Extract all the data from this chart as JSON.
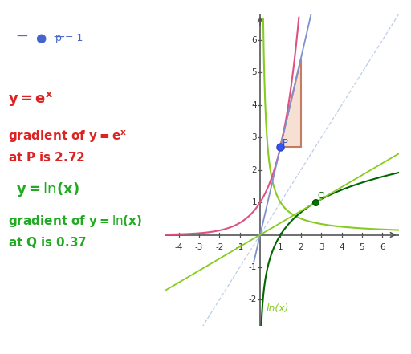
{
  "xlim": [
    -4.7,
    6.8
  ],
  "ylim": [
    -2.8,
    6.8
  ],
  "xticks": [
    -4,
    -3,
    -2,
    -1,
    1,
    2,
    3,
    4,
    5,
    6
  ],
  "yticks": [
    -2,
    -1,
    1,
    2,
    3,
    4,
    5,
    6
  ],
  "bg_color": "#ffffff",
  "axis_color": "#555555",
  "exp_color": "#e05080",
  "tangent_exp_color": "#8090cc",
  "ln_dark_color": "#006600",
  "ln_light_color": "#88cc22",
  "triangle_fill": "#f5ddd0",
  "triangle_edge": "#c07050",
  "P_x": 1.0,
  "P_y": 2.718281828,
  "Q_x": 2.718281828,
  "Q_y": 1.0,
  "diagonal_color": "#aabbdd",
  "label_color_red": "#dd2222",
  "label_color_green": "#22aa22",
  "slider_color": "#4466cc",
  "figsize": [
    5.12,
    4.41
  ],
  "dpi": 100
}
